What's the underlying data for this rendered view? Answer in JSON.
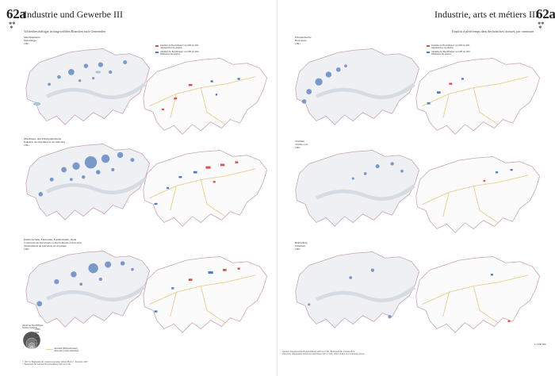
{
  "left_page": {
    "number": "62a",
    "title": "Industrie und Gewerbe III",
    "subtitle": "Vollzeitbeschäftigte in ausgewählten Branchen nach Gemeinden",
    "maps": [
      {
        "caption": "Metallindustrie\nMetallurgie",
        "year": "1991"
      },
      {
        "caption": "Maschinen- und Fahrzeugindustrie\nIndustrie des machines et du véhicules",
        "year": "1991"
      },
      {
        "caption": "Elektrotechnik, Elektronik, Feinmechanik, Optik\nConstructions électriques et électroniques, fabrication\nd'instruments de précision, en d'optique",
        "year": "1991"
      }
    ],
    "legend": [
      {
        "label": "Zunahme der Beschäftigten von 1985 bis 1991\nAugmentation des emplois",
        "color": "#d9534f"
      },
      {
        "label": "Abnahme der Beschäftigten von 1985 bis 1991\nDiminution des emplois",
        "color": "#4a7dbf"
      }
    ],
    "size_legend_title": "Anzahl der Beschäftigten\nNombre d'emplois",
    "size_legend_values": [
      "10000",
      "5000",
      "2000",
      "1000",
      "500",
      "100"
    ],
    "line_legend": "Autobahn (Nationalstrassen)\nAutoroutes (routes nationales)",
    "footnote": "© 1997 by Bundesamt für Landestopographie, Wabern/Bern (© lizenzen), 1997\n© Bundesamt für Statistik, Betriebszählung 1985 und 1991"
  },
  "right_page": {
    "number": "62a",
    "title": "Industrie, arts et métiers III",
    "subtitle": "Emplois à plein temps dans des branches choisies, par commune",
    "maps": [
      {
        "caption": "Uhrenindustrie\nHorlogerie",
        "year": "1991"
      },
      {
        "caption": "Textilien\nTextile et al.",
        "year": "1991"
      },
      {
        "caption": "Bekleidung\nVêtement",
        "year": "1991"
      }
    ],
    "legend": [
      {
        "label": "Zunahme der Beschäftigten von 1985 bis 1991\nAugmentation des emplois",
        "color": "#d9534f"
      },
      {
        "label": "Abnahme der Beschäftigten von 1985 bis 1991\nDiminution des emplois",
        "color": "#4a7dbf"
      }
    ],
    "footnote": "Quellen: Eidgenössische Betriebszählung 1985 und 1991, Bundesamt für Statistik, Bern\nRédaction: Département fédéral des statistiques 1985 et 1991, Office fédéral de la statistique, Berne",
    "scale": "1:2 000 000"
  },
  "colors": {
    "terrain": "#eef0f3",
    "relief": "#d6dbe3",
    "border": "#c9a2b0",
    "road": "#e8cf8e",
    "lake": "#a9c3dd",
    "dot": "#7a99c8",
    "increase": "#d9534f",
    "decrease": "#4a7dbf"
  }
}
